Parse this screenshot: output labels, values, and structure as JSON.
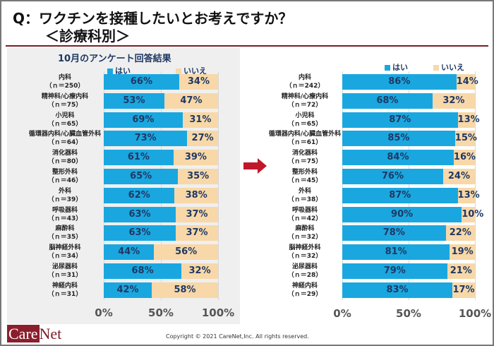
{
  "header": {
    "title": "Q：ワクチンを接種したいとお考えですか？",
    "subtitle": "＜診療科別＞"
  },
  "footer": {
    "logo": "CareNet",
    "copyright": "Copyright © 2021 CareNet,Inc.  All rights reserved."
  },
  "colors": {
    "yes": "#1aa7df",
    "no": "#f8d8a8",
    "title_rule": "#7a1c2a",
    "arrow": "#c0182a"
  },
  "chart_data": [
    {
      "type": "bar",
      "orientation": "horizontal",
      "stacked": true,
      "title": "10月のアンケート回答結果",
      "legend": [
        "はい",
        "いいえ"
      ],
      "legend_position": "top",
      "xlim": [
        0,
        100
      ],
      "xticks": [
        "0%",
        "50%",
        "100%"
      ],
      "categories": [
        "内科",
        "精神科/心療内科",
        "小児科",
        "循環器内科/心臓血管外科",
        "消化器科",
        "整形外科",
        "外科",
        "呼吸器科",
        "麻酔科",
        "脳神経外科",
        "泌尿器科",
        "神経内科"
      ],
      "n": [
        "（ｎ＝250）",
        "（ｎ＝75）",
        "（ｎ＝65）",
        "（ｎ＝64）",
        "（ｎ＝80）",
        "（ｎ＝46）",
        "（ｎ＝39）",
        "（ｎ＝43）",
        "（ｎ＝35）",
        "（ｎ＝34）",
        "（ｎ＝31）",
        "（ｎ＝31）"
      ],
      "series": [
        {
          "name": "はい",
          "values": [
            66,
            53,
            69,
            73,
            61,
            65,
            62,
            63,
            63,
            44,
            68,
            42
          ]
        },
        {
          "name": "いいえ",
          "values": [
            34,
            47,
            31,
            27,
            39,
            35,
            38,
            37,
            37,
            56,
            32,
            58
          ]
        }
      ]
    },
    {
      "type": "bar",
      "orientation": "horizontal",
      "stacked": true,
      "title": "",
      "legend": [
        "はい",
        "いいえ"
      ],
      "legend_position": "top",
      "xlim": [
        0,
        100
      ],
      "xticks": [
        "0%",
        "50%",
        "100%"
      ],
      "categories": [
        "内科",
        "精神科/心療内科",
        "小児科",
        "循環器内科/心臓血管外科",
        "消化器科",
        "整形外科",
        "外科",
        "呼吸器科",
        "麻酔科",
        "脳神経外科",
        "泌尿器科",
        "神経内科"
      ],
      "n": [
        "（ｎ＝242）",
        "（ｎ＝72）",
        "（ｎ＝65）",
        "（ｎ＝61）",
        "（ｎ＝75）",
        "（ｎ＝45）",
        "（ｎ＝38）",
        "（ｎ＝42）",
        "（ｎ＝32）",
        "（ｎ＝32）",
        "（ｎ＝28）",
        "（ｎ＝29）"
      ],
      "series": [
        {
          "name": "はい",
          "values": [
            86,
            68,
            87,
            85,
            84,
            76,
            87,
            90,
            78,
            81,
            79,
            83
          ]
        },
        {
          "name": "いいえ",
          "values": [
            14,
            32,
            13,
            15,
            16,
            24,
            13,
            10,
            22,
            19,
            21,
            17
          ]
        }
      ]
    }
  ]
}
